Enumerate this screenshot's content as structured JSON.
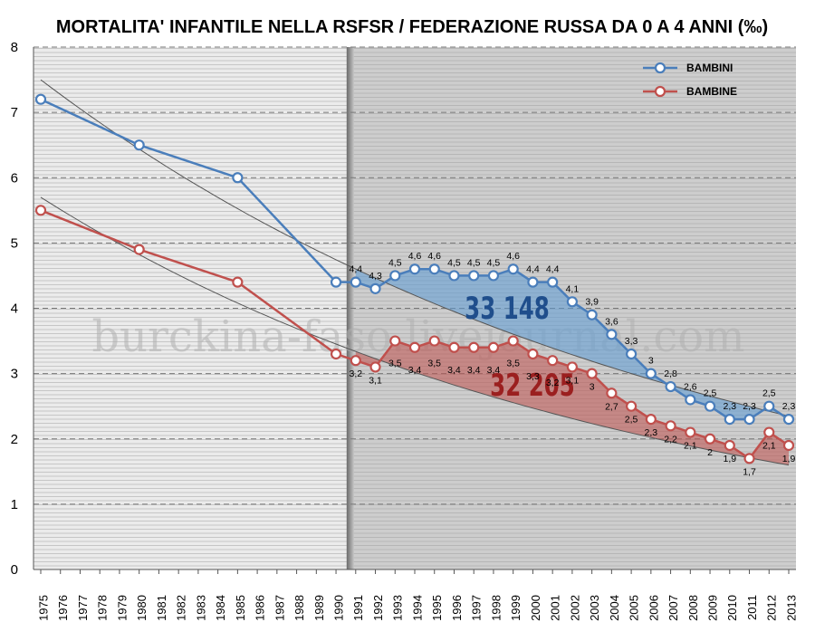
{
  "chart_data": {
    "type": "line",
    "title": "MORTALITA' INFANTILE NELLA RSFSR / FEDERAZIONE RUSSA DA 0 A 4 ANNI (‰)",
    "ylim": [
      0,
      8
    ],
    "yticks": [
      "0",
      "1",
      "2",
      "3",
      "4",
      "5",
      "6",
      "7",
      "8"
    ],
    "xlim": [
      1975,
      2013
    ],
    "xticks": [
      "1975",
      "1976",
      "1977",
      "1978",
      "1979",
      "1980",
      "1981",
      "1982",
      "1983",
      "1984",
      "1985",
      "1986",
      "1987",
      "1988",
      "1989",
      "1990",
      "1991",
      "1992",
      "1993",
      "1994",
      "1995",
      "1996",
      "1997",
      "1998",
      "1999",
      "2000",
      "2001",
      "2002",
      "2003",
      "2004",
      "2005",
      "2006",
      "2007",
      "2008",
      "2009",
      "2010",
      "2011",
      "2012",
      "2013"
    ],
    "shaded_region_start": 1991,
    "grid": true,
    "legend_position": "top-right",
    "watermark": "burckina-faso.livejournal.com",
    "series": [
      {
        "name": "BAMBINI",
        "color": "#4a7ebb",
        "x": [
          1975,
          1980,
          1985,
          1990,
          1991,
          1992,
          1993,
          1994,
          1995,
          1996,
          1997,
          1998,
          1999,
          2000,
          2001,
          2002,
          2003,
          2004,
          2005,
          2006,
          2007,
          2008,
          2009,
          2010,
          2011,
          2012,
          2013
        ],
        "y": [
          7.2,
          6.5,
          6.0,
          4.4,
          4.4,
          4.3,
          4.5,
          4.6,
          4.6,
          4.5,
          4.5,
          4.5,
          4.6,
          4.4,
          4.4,
          4.1,
          3.9,
          3.6,
          3.3,
          3.0,
          2.8,
          2.6,
          2.5,
          2.3,
          2.3,
          2.5,
          2.3
        ],
        "data_labels": {
          "1991": "4,4",
          "1992": "4,3",
          "1993": "4,5",
          "1994": "4,6",
          "1995": "4,6",
          "1996": "4,5",
          "1997": "4,5",
          "1998": "4,5",
          "1999": "4,6",
          "2000": "4,4",
          "2001": "4,4",
          "2002": "4,1",
          "2003": "3,9",
          "2004": "3,6",
          "2005": "3,3",
          "2006": "3",
          "2007": "2,8",
          "2008": "2,6",
          "2009": "2,5",
          "2010": "2,3",
          "2011": "2,3",
          "2012": "2,5",
          "2013": "2,3"
        },
        "area_total_label": "33 148",
        "area_total_color": "#1f4e8c",
        "trend": {
          "type": "exponential",
          "y_start": 7.5,
          "y_end": 2.35
        }
      },
      {
        "name": "BAMBINE",
        "color": "#c0504d",
        "x": [
          1975,
          1980,
          1985,
          1990,
          1991,
          1992,
          1993,
          1994,
          1995,
          1996,
          1997,
          1998,
          1999,
          2000,
          2001,
          2002,
          2003,
          2004,
          2005,
          2006,
          2007,
          2008,
          2009,
          2010,
          2011,
          2012,
          2013
        ],
        "y": [
          5.5,
          4.9,
          4.4,
          3.3,
          3.2,
          3.1,
          3.5,
          3.4,
          3.5,
          3.4,
          3.4,
          3.4,
          3.5,
          3.3,
          3.2,
          3.1,
          3.0,
          2.7,
          2.5,
          2.3,
          2.2,
          2.1,
          2.0,
          1.9,
          1.7,
          2.1,
          1.9
        ],
        "data_labels": {
          "1991": "3,2",
          "1992": "3,1",
          "1993": "3,5",
          "1994": "3,4",
          "1995": "3,5",
          "1996": "3,4",
          "1997": "3,4",
          "1998": "3,4",
          "1999": "3,5",
          "2000": "3,3",
          "2001": "3,2",
          "2002": "3,1",
          "2003": "3",
          "2004": "2,7",
          "2005": "2,5",
          "2006": "2,3",
          "2007": "2,2",
          "2008": "2,1",
          "2009": "2",
          "2010": "1,9",
          "2011": "1,7",
          "2012": "2,1",
          "2013": "1,9"
        },
        "area_total_label": "32 205",
        "area_total_color": "#9b1f1f",
        "trend": {
          "type": "exponential",
          "y_start": 5.7,
          "y_end": 1.6
        }
      }
    ]
  }
}
